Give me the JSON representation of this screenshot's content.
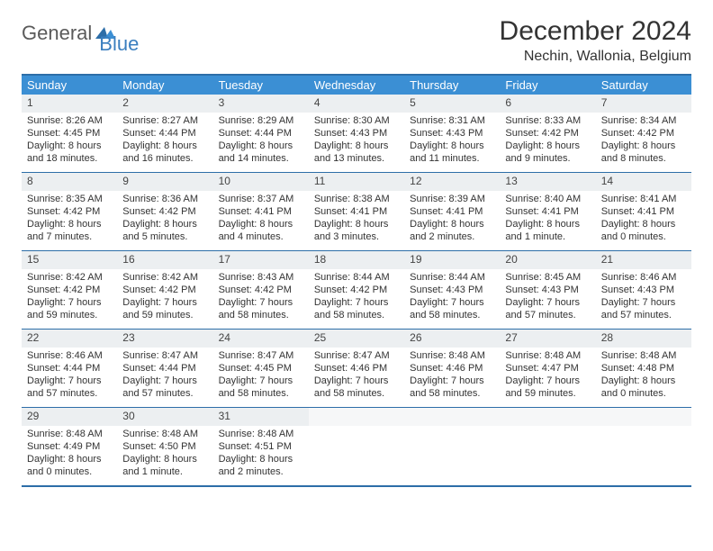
{
  "logo": {
    "word1": "General",
    "word2": "Blue"
  },
  "title": "December 2024",
  "location": "Nechin, Wallonia, Belgium",
  "colors": {
    "header_bg": "#3b8fd4",
    "border": "#2d6ea8",
    "daynum_bg": "#eceff1",
    "logo_accent": "#3b7fbf"
  },
  "weekdays": [
    "Sunday",
    "Monday",
    "Tuesday",
    "Wednesday",
    "Thursday",
    "Friday",
    "Saturday"
  ],
  "weeks": [
    [
      {
        "n": "1",
        "sr": "Sunrise: 8:26 AM",
        "ss": "Sunset: 4:45 PM",
        "d1": "Daylight: 8 hours",
        "d2": "and 18 minutes."
      },
      {
        "n": "2",
        "sr": "Sunrise: 8:27 AM",
        "ss": "Sunset: 4:44 PM",
        "d1": "Daylight: 8 hours",
        "d2": "and 16 minutes."
      },
      {
        "n": "3",
        "sr": "Sunrise: 8:29 AM",
        "ss": "Sunset: 4:44 PM",
        "d1": "Daylight: 8 hours",
        "d2": "and 14 minutes."
      },
      {
        "n": "4",
        "sr": "Sunrise: 8:30 AM",
        "ss": "Sunset: 4:43 PM",
        "d1": "Daylight: 8 hours",
        "d2": "and 13 minutes."
      },
      {
        "n": "5",
        "sr": "Sunrise: 8:31 AM",
        "ss": "Sunset: 4:43 PM",
        "d1": "Daylight: 8 hours",
        "d2": "and 11 minutes."
      },
      {
        "n": "6",
        "sr": "Sunrise: 8:33 AM",
        "ss": "Sunset: 4:42 PM",
        "d1": "Daylight: 8 hours",
        "d2": "and 9 minutes."
      },
      {
        "n": "7",
        "sr": "Sunrise: 8:34 AM",
        "ss": "Sunset: 4:42 PM",
        "d1": "Daylight: 8 hours",
        "d2": "and 8 minutes."
      }
    ],
    [
      {
        "n": "8",
        "sr": "Sunrise: 8:35 AM",
        "ss": "Sunset: 4:42 PM",
        "d1": "Daylight: 8 hours",
        "d2": "and 7 minutes."
      },
      {
        "n": "9",
        "sr": "Sunrise: 8:36 AM",
        "ss": "Sunset: 4:42 PM",
        "d1": "Daylight: 8 hours",
        "d2": "and 5 minutes."
      },
      {
        "n": "10",
        "sr": "Sunrise: 8:37 AM",
        "ss": "Sunset: 4:41 PM",
        "d1": "Daylight: 8 hours",
        "d2": "and 4 minutes."
      },
      {
        "n": "11",
        "sr": "Sunrise: 8:38 AM",
        "ss": "Sunset: 4:41 PM",
        "d1": "Daylight: 8 hours",
        "d2": "and 3 minutes."
      },
      {
        "n": "12",
        "sr": "Sunrise: 8:39 AM",
        "ss": "Sunset: 4:41 PM",
        "d1": "Daylight: 8 hours",
        "d2": "and 2 minutes."
      },
      {
        "n": "13",
        "sr": "Sunrise: 8:40 AM",
        "ss": "Sunset: 4:41 PM",
        "d1": "Daylight: 8 hours",
        "d2": "and 1 minute."
      },
      {
        "n": "14",
        "sr": "Sunrise: 8:41 AM",
        "ss": "Sunset: 4:41 PM",
        "d1": "Daylight: 8 hours",
        "d2": "and 0 minutes."
      }
    ],
    [
      {
        "n": "15",
        "sr": "Sunrise: 8:42 AM",
        "ss": "Sunset: 4:42 PM",
        "d1": "Daylight: 7 hours",
        "d2": "and 59 minutes."
      },
      {
        "n": "16",
        "sr": "Sunrise: 8:42 AM",
        "ss": "Sunset: 4:42 PM",
        "d1": "Daylight: 7 hours",
        "d2": "and 59 minutes."
      },
      {
        "n": "17",
        "sr": "Sunrise: 8:43 AM",
        "ss": "Sunset: 4:42 PM",
        "d1": "Daylight: 7 hours",
        "d2": "and 58 minutes."
      },
      {
        "n": "18",
        "sr": "Sunrise: 8:44 AM",
        "ss": "Sunset: 4:42 PM",
        "d1": "Daylight: 7 hours",
        "d2": "and 58 minutes."
      },
      {
        "n": "19",
        "sr": "Sunrise: 8:44 AM",
        "ss": "Sunset: 4:43 PM",
        "d1": "Daylight: 7 hours",
        "d2": "and 58 minutes."
      },
      {
        "n": "20",
        "sr": "Sunrise: 8:45 AM",
        "ss": "Sunset: 4:43 PM",
        "d1": "Daylight: 7 hours",
        "d2": "and 57 minutes."
      },
      {
        "n": "21",
        "sr": "Sunrise: 8:46 AM",
        "ss": "Sunset: 4:43 PM",
        "d1": "Daylight: 7 hours",
        "d2": "and 57 minutes."
      }
    ],
    [
      {
        "n": "22",
        "sr": "Sunrise: 8:46 AM",
        "ss": "Sunset: 4:44 PM",
        "d1": "Daylight: 7 hours",
        "d2": "and 57 minutes."
      },
      {
        "n": "23",
        "sr": "Sunrise: 8:47 AM",
        "ss": "Sunset: 4:44 PM",
        "d1": "Daylight: 7 hours",
        "d2": "and 57 minutes."
      },
      {
        "n": "24",
        "sr": "Sunrise: 8:47 AM",
        "ss": "Sunset: 4:45 PM",
        "d1": "Daylight: 7 hours",
        "d2": "and 58 minutes."
      },
      {
        "n": "25",
        "sr": "Sunrise: 8:47 AM",
        "ss": "Sunset: 4:46 PM",
        "d1": "Daylight: 7 hours",
        "d2": "and 58 minutes."
      },
      {
        "n": "26",
        "sr": "Sunrise: 8:48 AM",
        "ss": "Sunset: 4:46 PM",
        "d1": "Daylight: 7 hours",
        "d2": "and 58 minutes."
      },
      {
        "n": "27",
        "sr": "Sunrise: 8:48 AM",
        "ss": "Sunset: 4:47 PM",
        "d1": "Daylight: 7 hours",
        "d2": "and 59 minutes."
      },
      {
        "n": "28",
        "sr": "Sunrise: 8:48 AM",
        "ss": "Sunset: 4:48 PM",
        "d1": "Daylight: 8 hours",
        "d2": "and 0 minutes."
      }
    ],
    [
      {
        "n": "29",
        "sr": "Sunrise: 8:48 AM",
        "ss": "Sunset: 4:49 PM",
        "d1": "Daylight: 8 hours",
        "d2": "and 0 minutes."
      },
      {
        "n": "30",
        "sr": "Sunrise: 8:48 AM",
        "ss": "Sunset: 4:50 PM",
        "d1": "Daylight: 8 hours",
        "d2": "and 1 minute."
      },
      {
        "n": "31",
        "sr": "Sunrise: 8:48 AM",
        "ss": "Sunset: 4:51 PM",
        "d1": "Daylight: 8 hours",
        "d2": "and 2 minutes."
      },
      {
        "n": "",
        "sr": "",
        "ss": "",
        "d1": "",
        "d2": "",
        "empty": true
      },
      {
        "n": "",
        "sr": "",
        "ss": "",
        "d1": "",
        "d2": "",
        "empty": true
      },
      {
        "n": "",
        "sr": "",
        "ss": "",
        "d1": "",
        "d2": "",
        "empty": true
      },
      {
        "n": "",
        "sr": "",
        "ss": "",
        "d1": "",
        "d2": "",
        "empty": true
      }
    ]
  ]
}
